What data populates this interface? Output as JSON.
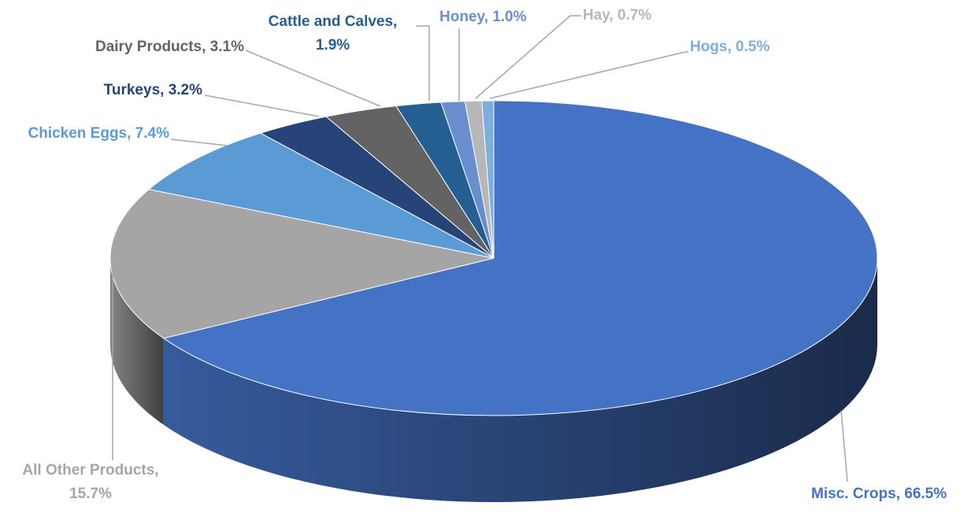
{
  "chart_data": {
    "type": "pie",
    "categories": [
      "Misc. Crops, 66.5%",
      "All Other Products, 15.7%",
      "Chicken Eggs, 7.4%",
      "Turkeys, 3.2%",
      "Dairy Products, 3.1%",
      "Cattle and Calves, 1.9%",
      "Honey, 1.0%",
      "Hay, 0.7%",
      "Hogs, 0.5%"
    ],
    "values": [
      66.5,
      15.7,
      7.4,
      3.2,
      3.1,
      1.9,
      1.0,
      0.7,
      0.5
    ],
    "colors": [
      "#4472c4",
      "#a5a5a5",
      "#5b9bd5",
      "#264478",
      "#636363",
      "#255e91",
      "#698ed0",
      "#b7b7b7",
      "#7cafdd"
    ]
  }
}
